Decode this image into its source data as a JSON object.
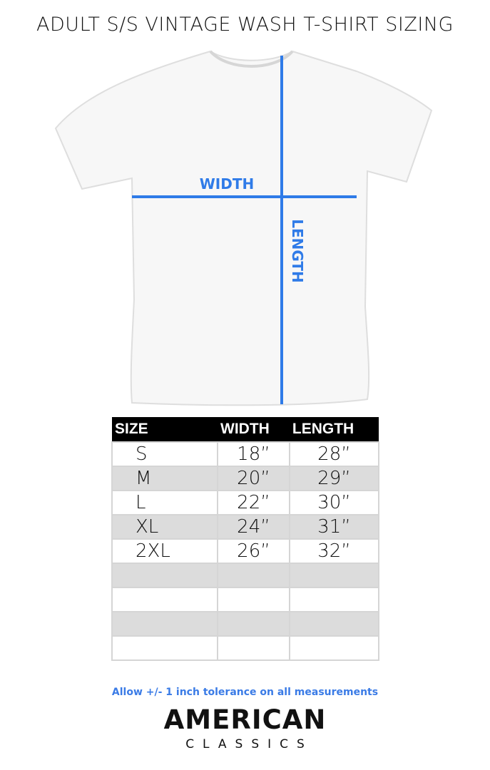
{
  "title": "ADULT S/S VINTAGE WASH T-SHIRT SIZING",
  "diagram": {
    "width_label": "WIDTH",
    "length_label": "LENGTH",
    "line_color": "#2f7be8"
  },
  "table": {
    "headers": [
      "SIZE",
      "WIDTH",
      "LENGTH"
    ],
    "rows": [
      [
        "S",
        "18”",
        "28”"
      ],
      [
        "M",
        "20”",
        "29”"
      ],
      [
        "L",
        "22”",
        "30”"
      ],
      [
        "XL",
        "24”",
        "31”"
      ],
      [
        "2XL",
        "26”",
        "32”"
      ],
      [
        "",
        "",
        ""
      ],
      [
        "",
        "",
        ""
      ],
      [
        "",
        "",
        ""
      ],
      [
        "",
        "",
        ""
      ]
    ]
  },
  "note": "Allow +/- 1 inch tolerance on all measurements",
  "logo": {
    "line1": "AMERICAN",
    "line2": "CLASSICS"
  }
}
